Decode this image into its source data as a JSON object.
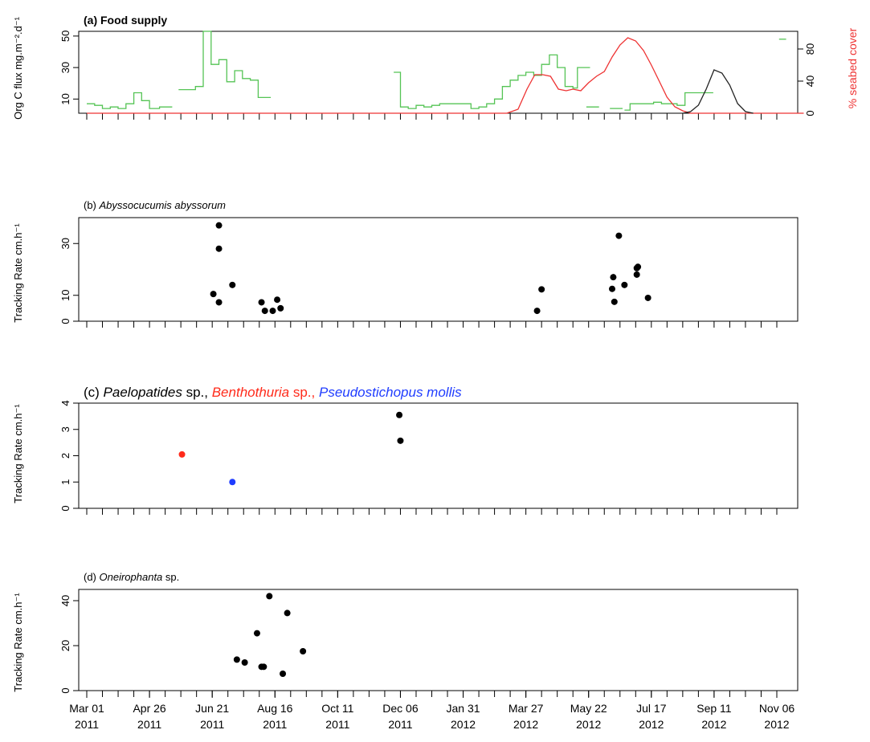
{
  "figure": {
    "x_ticks": [
      {
        "date": "2011-03-01",
        "line1": "Mar 01",
        "line2": "2011"
      },
      {
        "date": "2011-04-26",
        "line1": "Apr 26",
        "line2": "2011"
      },
      {
        "date": "2011-06-21",
        "line1": "Jun 21",
        "line2": "2011"
      },
      {
        "date": "2011-08-16",
        "line1": "Aug 16",
        "line2": "2011"
      },
      {
        "date": "2011-10-11",
        "line1": "Oct 11",
        "line2": "2011"
      },
      {
        "date": "2011-12-06",
        "line1": "Dec 06",
        "line2": "2011"
      },
      {
        "date": "2012-01-31",
        "line1": "Jan 31",
        "line2": "2012"
      },
      {
        "date": "2012-03-27",
        "line1": "Mar 27",
        "line2": "2012"
      },
      {
        "date": "2012-05-22",
        "line1": "May 22",
        "line2": "2012"
      },
      {
        "date": "2012-07-17",
        "line1": "Jul 17",
        "line2": "2012"
      },
      {
        "date": "2012-09-11",
        "line1": "Sep 11",
        "line2": "2012"
      },
      {
        "date": "2012-11-06",
        "line1": "Nov 06",
        "line2": "2012"
      }
    ],
    "colors": {
      "food": "#55c455",
      "seabed": "#ee3333",
      "black_line": "#222222",
      "red": "#ff2a1a",
      "blue": "#1f3cff",
      "black": "#000000"
    }
  },
  "chart_data": [
    {
      "type": "line",
      "panel": "a",
      "title": "(a) Food supply",
      "ylabel": "Org C flux mg.m⁻².d⁻¹",
      "ylabel_right": "% seabed cover",
      "yticks": [
        10,
        30,
        50
      ],
      "ylim": [
        1,
        53
      ],
      "yticks_right": [
        0,
        40,
        80
      ],
      "ylim_right": [
        0,
        102
      ],
      "series": [
        {
          "name": "Org C flux",
          "axis": "left",
          "color": "#55c455",
          "step": true,
          "segments": [
            [
              [
                "2011-03-01",
                7
              ],
              [
                "2011-03-08",
                6
              ],
              [
                "2011-03-15",
                4
              ],
              [
                "2011-03-22",
                5
              ],
              [
                "2011-03-29",
                4
              ],
              [
                "2011-04-05",
                7
              ],
              [
                "2011-04-12",
                14
              ],
              [
                "2011-04-19",
                9
              ],
              [
                "2011-04-26",
                4
              ],
              [
                "2011-05-05",
                5
              ],
              [
                "2011-05-12",
                5
              ]
            ],
            [
              [
                "2011-05-22",
                16
              ],
              [
                "2011-05-30",
                16
              ],
              [
                "2011-06-06",
                18
              ],
              [
                "2011-06-13",
                53
              ],
              [
                "2011-06-20",
                32
              ],
              [
                "2011-06-27",
                35
              ],
              [
                "2011-07-04",
                21
              ],
              [
                "2011-07-11",
                28
              ],
              [
                "2011-07-18",
                23
              ],
              [
                "2011-07-25",
                22
              ],
              [
                "2011-08-01",
                11
              ],
              [
                "2011-08-08",
                11
              ]
            ]
          ]
        },
        {
          "name": "Org C flux (2)",
          "axis": "left",
          "color": "#55c455",
          "step": true,
          "segments": [
            [
              [
                "2011-11-30",
                27
              ],
              [
                "2011-12-06",
                5
              ],
              [
                "2011-12-13",
                4
              ],
              [
                "2011-12-20",
                6
              ],
              [
                "2011-12-27",
                5
              ],
              [
                "2012-01-03",
                6
              ],
              [
                "2012-01-10",
                7
              ],
              [
                "2012-01-17",
                7
              ],
              [
                "2012-01-24",
                7
              ],
              [
                "2012-01-31",
                7
              ],
              [
                "2012-02-07",
                4
              ],
              [
                "2012-02-14",
                5
              ],
              [
                "2012-02-21",
                7
              ],
              [
                "2012-02-28",
                10
              ],
              [
                "2012-03-06",
                18
              ],
              [
                "2012-03-13",
                22
              ],
              [
                "2012-03-20",
                25
              ],
              [
                "2012-03-27",
                27
              ],
              [
                "2012-04-03",
                25
              ],
              [
                "2012-04-10",
                32
              ],
              [
                "2012-04-17",
                38
              ],
              [
                "2012-04-24",
                30
              ],
              [
                "2012-05-01",
                18
              ],
              [
                "2012-05-08",
                17
              ],
              [
                "2012-05-12",
                30
              ],
              [
                "2012-05-19",
                30
              ]
            ],
            [
              [
                "2012-05-20",
                5
              ],
              [
                "2012-05-27",
                5
              ]
            ],
            [
              [
                "2012-06-10",
                4
              ],
              [
                "2012-06-17",
                4
              ]
            ],
            [
              [
                "2012-06-23",
                3
              ],
              [
                "2012-06-28",
                7
              ],
              [
                "2012-07-05",
                7
              ],
              [
                "2012-07-12",
                7
              ],
              [
                "2012-07-19",
                8
              ],
              [
                "2012-07-26",
                7
              ],
              [
                "2012-08-02",
                7
              ],
              [
                "2012-08-09",
                6
              ],
              [
                "2012-08-16",
                14
              ],
              [
                "2012-08-23",
                14
              ],
              [
                "2012-08-30",
                14
              ],
              [
                "2012-09-06",
                14
              ]
            ],
            [
              [
                "2012-11-08",
                48
              ],
              [
                "2012-11-10",
                48
              ]
            ]
          ]
        },
        {
          "name": "% seabed cover",
          "axis": "right",
          "color": "#ee3333",
          "step": false,
          "points": [
            [
              "2011-03-01",
              0
            ],
            [
              "2012-03-10",
              0
            ],
            [
              "2012-03-20",
              5
            ],
            [
              "2012-03-28",
              30
            ],
            [
              "2012-04-04",
              48
            ],
            [
              "2012-04-11",
              48
            ],
            [
              "2012-04-18",
              46
            ],
            [
              "2012-04-25",
              30
            ],
            [
              "2012-05-02",
              28
            ],
            [
              "2012-05-08",
              30
            ],
            [
              "2012-05-15",
              28
            ],
            [
              "2012-05-22",
              38
            ],
            [
              "2012-05-29",
              46
            ],
            [
              "2012-06-05",
              52
            ],
            [
              "2012-06-12",
              70
            ],
            [
              "2012-06-19",
              85
            ],
            [
              "2012-06-26",
              94
            ],
            [
              "2012-07-03",
              90
            ],
            [
              "2012-07-10",
              78
            ],
            [
              "2012-07-17",
              60
            ],
            [
              "2012-07-24",
              40
            ],
            [
              "2012-07-31",
              20
            ],
            [
              "2012-08-07",
              8
            ],
            [
              "2012-08-14",
              3
            ],
            [
              "2012-08-21",
              0
            ],
            [
              "2012-11-30",
              0
            ]
          ]
        },
        {
          "name": "black line",
          "axis": "right",
          "color": "#222222",
          "step": false,
          "points": [
            [
              "2012-08-14",
              0
            ],
            [
              "2012-08-21",
              2
            ],
            [
              "2012-08-28",
              10
            ],
            [
              "2012-09-04",
              30
            ],
            [
              "2012-09-11",
              54
            ],
            [
              "2012-09-18",
              50
            ],
            [
              "2012-09-25",
              35
            ],
            [
              "2012-10-02",
              12
            ],
            [
              "2012-10-09",
              2
            ],
            [
              "2012-10-16",
              0
            ]
          ]
        }
      ]
    },
    {
      "type": "scatter",
      "panel": "b",
      "title": "(b) Abyssocucumis abyssorum",
      "title_parts": [
        {
          "text": "(b) ",
          "italic": false
        },
        {
          "text": "Abyssocucumis abyssorum",
          "italic": true
        }
      ],
      "ylabel": "Tracking Rate cm.h⁻¹",
      "yticks": [
        0,
        10,
        30
      ],
      "ylim": [
        0,
        40
      ],
      "series": [
        {
          "color": "#000000",
          "points": [
            [
              "2011-06-22",
              10.5
            ],
            [
              "2011-06-27",
              37
            ],
            [
              "2011-06-27",
              28
            ],
            [
              "2011-06-27",
              7.3
            ],
            [
              "2011-07-09",
              14
            ],
            [
              "2011-08-04",
              7.3
            ],
            [
              "2011-08-07",
              4
            ],
            [
              "2011-08-14",
              4
            ],
            [
              "2011-08-18",
              8.3
            ],
            [
              "2011-08-21",
              5
            ],
            [
              "2012-04-06",
              4
            ],
            [
              "2012-04-10",
              12.3
            ],
            [
              "2012-06-13",
              17
            ],
            [
              "2012-06-12",
              12.5
            ],
            [
              "2012-06-14",
              7.5
            ],
            [
              "2012-06-18",
              33
            ],
            [
              "2012-06-23",
              14
            ],
            [
              "2012-07-04",
              18
            ],
            [
              "2012-07-04",
              20.5
            ],
            [
              "2012-07-05",
              21
            ],
            [
              "2012-07-14",
              9
            ]
          ]
        }
      ]
    },
    {
      "type": "scatter",
      "panel": "c",
      "title": "(c) Paelopatides sp., Benthothuria sp., Pseudostichopus mollis",
      "title_parts": [
        {
          "text": "(c) ",
          "italic": false,
          "color": "#000000"
        },
        {
          "text": "Paelopatides",
          "italic": true,
          "color": "#000000"
        },
        {
          "text": " sp., ",
          "italic": false,
          "color": "#000000"
        },
        {
          "text": "Benthothuria",
          "italic": true,
          "color": "#ff2a1a"
        },
        {
          "text": " sp., ",
          "italic": false,
          "color": "#ff2a1a"
        },
        {
          "text": "Pseudostichopus mollis",
          "italic": true,
          "color": "#1f3cff"
        }
      ],
      "ylabel": "Tracking Rate cm.h⁻¹",
      "yticks": [
        0,
        1,
        2,
        3,
        4
      ],
      "ylim": [
        0,
        4
      ],
      "series": [
        {
          "name": "Paelopatides sp.",
          "color": "#000000",
          "points": [
            [
              "2011-12-05",
              3.55
            ],
            [
              "2011-12-06",
              2.57
            ]
          ]
        },
        {
          "name": "Benthothuria sp.",
          "color": "#ff2a1a",
          "points": [
            [
              "2011-05-25",
              2.05
            ]
          ]
        },
        {
          "name": "Pseudostichopus mollis",
          "color": "#1f3cff",
          "points": [
            [
              "2011-07-09",
              1.0
            ]
          ]
        }
      ]
    },
    {
      "type": "scatter",
      "panel": "d",
      "title": "(d) Oneirophanta sp.",
      "title_parts": [
        {
          "text": "(d) ",
          "italic": false
        },
        {
          "text": "Oneirophanta",
          "italic": true
        },
        {
          "text": " sp.",
          "italic": false
        }
      ],
      "ylabel": "Tracking Rate cm.h⁻¹",
      "yticks": [
        0,
        20,
        40
      ],
      "ylim": [
        0,
        45
      ],
      "series": [
        {
          "color": "#000000",
          "points": [
            [
              "2011-07-13",
              13.8
            ],
            [
              "2011-07-20",
              12.5
            ],
            [
              "2011-07-31",
              25.5
            ],
            [
              "2011-08-04",
              10.6
            ],
            [
              "2011-08-06",
              10.6
            ],
            [
              "2011-08-11",
              42
            ],
            [
              "2011-08-23",
              7.5
            ],
            [
              "2011-08-27",
              34.5
            ],
            [
              "2011-09-10",
              17.5
            ]
          ]
        }
      ]
    }
  ]
}
